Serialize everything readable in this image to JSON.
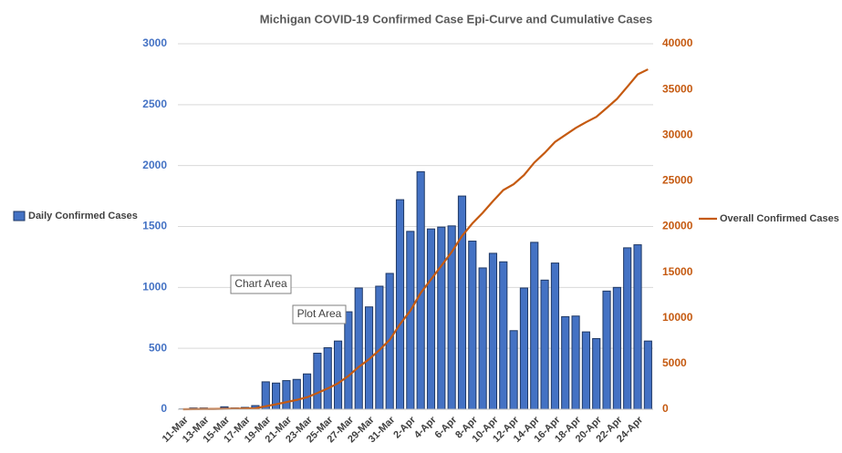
{
  "chart_data": {
    "type": "bar-line",
    "title": "Michigan COVID-19 Confirmed Case Epi-Curve and Cumulative Cases",
    "categories": [
      "11-Mar",
      null,
      "13-Mar",
      null,
      "15-Mar",
      null,
      "17-Mar",
      null,
      "19-Mar",
      null,
      "21-Mar",
      null,
      "23-Mar",
      null,
      "25-Mar",
      null,
      "27-Mar",
      null,
      "29-Mar",
      null,
      "31-Mar",
      null,
      "2-Apr",
      null,
      "4-Apr",
      null,
      "6-Apr",
      null,
      "8-Apr",
      null,
      "10-Apr",
      null,
      "12-Apr",
      null,
      "14-Apr",
      null,
      "16-Apr",
      null,
      "18-Apr",
      null,
      "20-Apr",
      null,
      "22-Apr",
      null,
      "24-Apr",
      null
    ],
    "series": [
      {
        "name": "Daily Confirmed Cases",
        "color": "#4472c4",
        "values": [
          2,
          10,
          10,
          5,
          20,
          10,
          15,
          30,
          225,
          215,
          235,
          245,
          290,
          460,
          505,
          560,
          800,
          995,
          840,
          1010,
          1115,
          1720,
          1460,
          1950,
          1480,
          1495,
          1505,
          1750,
          1380,
          1160,
          1280,
          1210,
          645,
          995,
          1370,
          1060,
          1200,
          760,
          765,
          635,
          580,
          970,
          1000,
          1325,
          1350,
          560
        ]
      },
      {
        "name": "Overall Confirmed Cases",
        "color": "#c55a11",
        "axis": "y2",
        "values": [
          2,
          12,
          22,
          27,
          47,
          57,
          72,
          102,
          327,
          542,
          777,
          1022,
          1312,
          1772,
          2277,
          2837,
          3637,
          4632,
          5472,
          6482,
          7597,
          9317,
          10777,
          12727,
          14207,
          15702,
          17207,
          18957,
          20337,
          21497,
          22777,
          23987,
          24632,
          25627,
          26997,
          28057,
          29257,
          30017,
          30782,
          31417,
          31997,
          32967,
          33967,
          35292,
          36642,
          37202
        ]
      }
    ],
    "ylim": [
      0,
      3000
    ],
    "yticks": [
      0,
      500,
      1000,
      1500,
      2000,
      2500,
      3000
    ],
    "y2lim": [
      0,
      40000
    ],
    "y2ticks": [
      0,
      5000,
      10000,
      15000,
      20000,
      25000,
      30000,
      35000,
      40000
    ],
    "grid": true,
    "annotations": [
      "Chart Area",
      "Plot Area"
    ]
  }
}
